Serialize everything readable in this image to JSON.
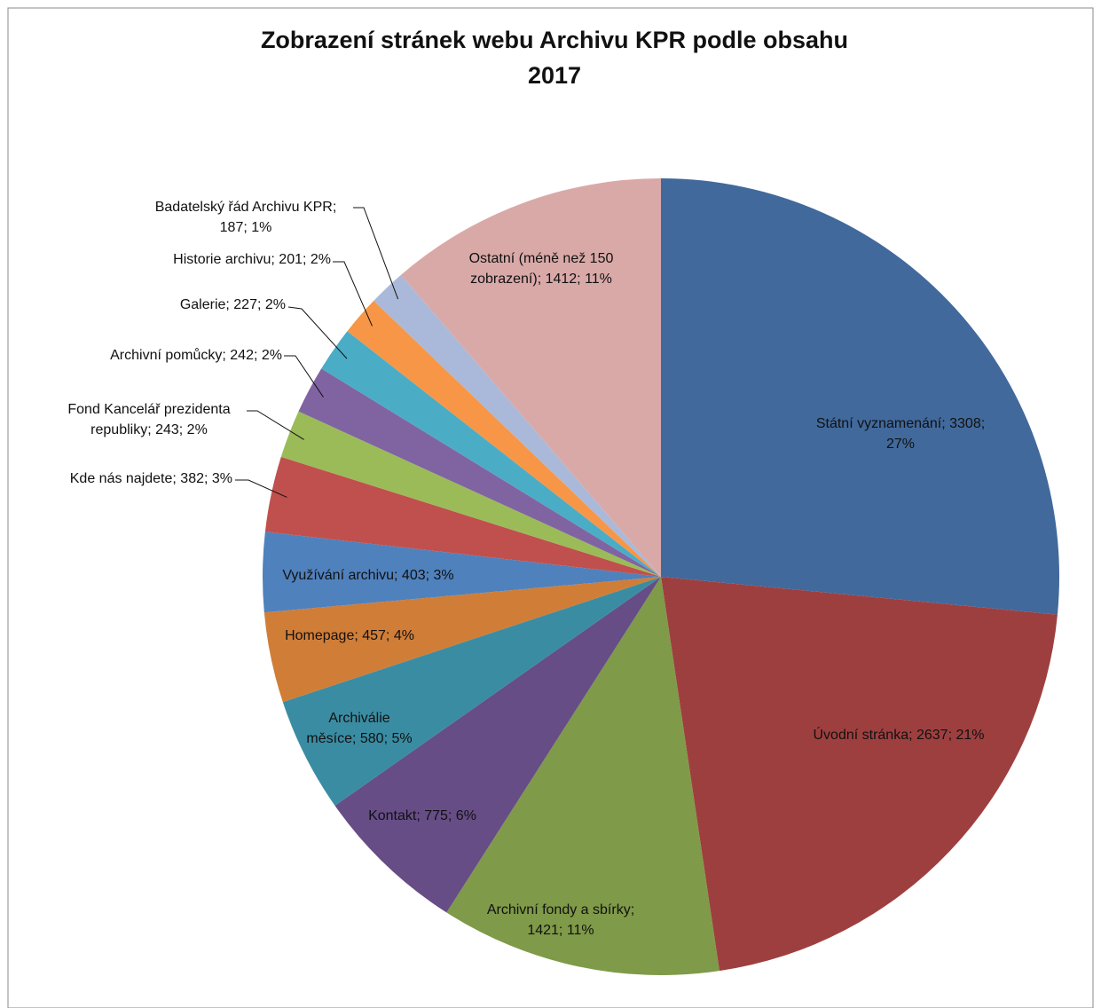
{
  "chart_data": {
    "type": "pie",
    "title": [
      "Zobrazení stránek webu Archivu KPR podle obsahu",
      "2017"
    ],
    "labels": [
      [
        "Státní vyznamenání; 3308;",
        "27%"
      ],
      [
        "Úvodní stránka; 2637; 21%"
      ],
      [
        "Archivní fondy a sbírky;",
        "1421; 11%"
      ],
      [
        "Kontakt; 775; 6%"
      ],
      [
        "Archiválie",
        "měsíce; 580; 5%"
      ],
      [
        "Homepage; 457; 4%"
      ],
      [
        "Využívání archivu; 403; 3%"
      ],
      [
        "Kde nás najdete; 382; 3%"
      ],
      [
        "Fond Kancelář prezidenta",
        "republiky; 243; 2%"
      ],
      [
        "Archivní pomůcky; 242; 2%"
      ],
      [
        "Galerie; 227; 2%"
      ],
      [
        "Historie archivu; 201; 2%"
      ],
      [
        "Badatelský řád Archivu KPR;",
        "187; 1%"
      ],
      [
        "Ostatní (méně než 150",
        "zobrazení); 1412; 11%"
      ]
    ],
    "values": [
      3308,
      2637,
      1421,
      775,
      580,
      457,
      403,
      382,
      243,
      242,
      227,
      201,
      187,
      1412
    ],
    "colors": [
      "#41699c",
      "#9e3f3f",
      "#7f9a48",
      "#664d86",
      "#3a8ca2",
      "#d07d38",
      "#4f81bd",
      "#c0504d",
      "#9bbb59",
      "#8064a2",
      "#4bacc6",
      "#f79646",
      "#aab9d9",
      "#d9a9a8"
    ]
  }
}
